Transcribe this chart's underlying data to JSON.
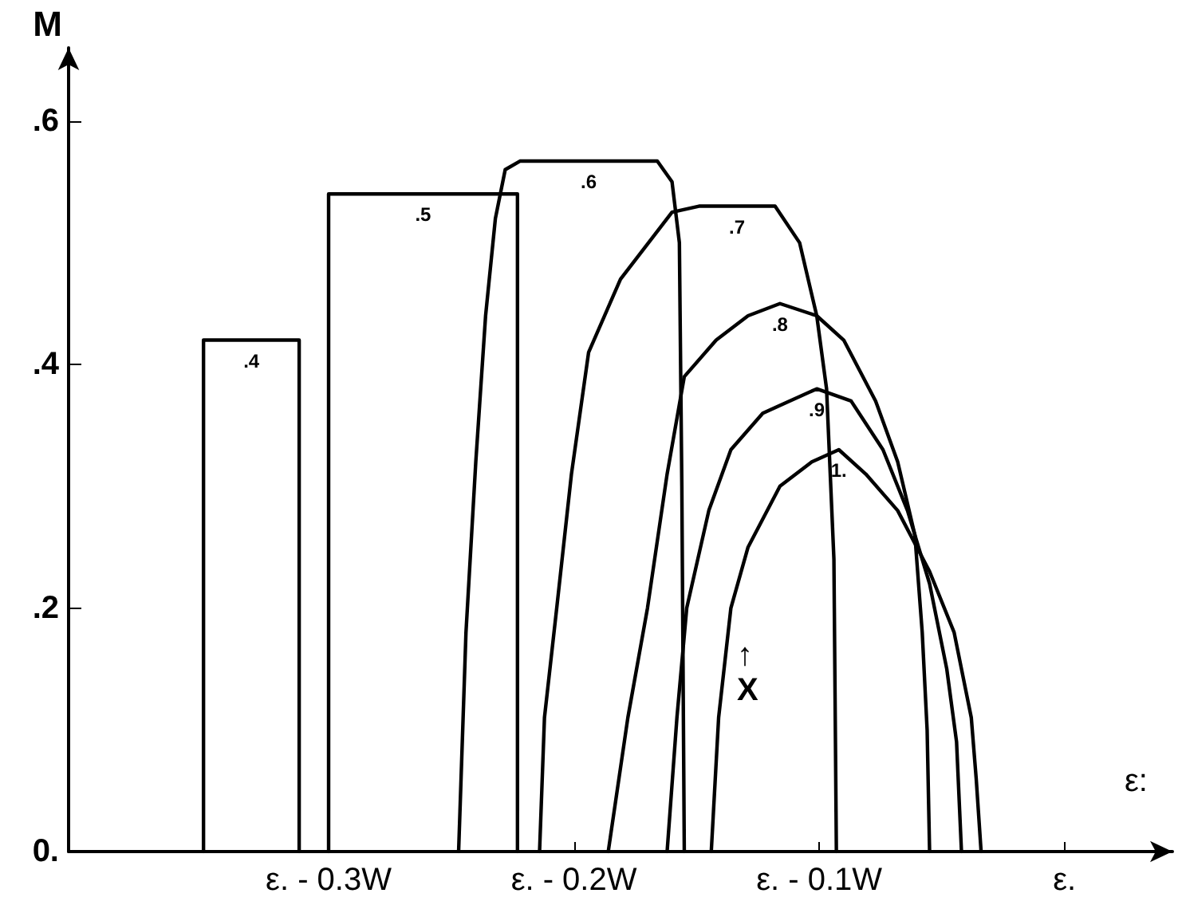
{
  "chart_data": {
    "type": "line",
    "xlabel": "ε:",
    "ylabel": "M",
    "xlim": [
      -0.406,
      0.044
    ],
    "ylim": [
      0,
      0.66
    ],
    "xticks": [
      {
        "value": -0.3,
        "label": "ε. - 0.3W"
      },
      {
        "value": -0.2,
        "label": "ε. - 0.2W"
      },
      {
        "value": -0.1,
        "label": "ε. - 0.1W"
      },
      {
        "value": 0,
        "label": "ε."
      }
    ],
    "yticks": [
      {
        "value": 0,
        "label": "0."
      },
      {
        "value": 0.2,
        "label": ".2"
      },
      {
        "value": 0.4,
        "label": ".4"
      },
      {
        "value": 0.6,
        "label": ".6"
      }
    ],
    "grid": false,
    "marker": "none",
    "line_style": "solid",
    "series": [
      {
        "name": ".4",
        "color": "#000000",
        "x": [
          -0.351,
          -0.351,
          -0.312,
          -0.312
        ],
        "values": [
          0,
          0.42,
          0.42,
          0
        ]
      },
      {
        "name": ".5",
        "color": "#000000",
        "x": [
          -0.3,
          -0.3,
          -0.223,
          -0.223
        ],
        "values": [
          0,
          0.54,
          0.54,
          0
        ]
      },
      {
        "name": ".6",
        "color": "#000000",
        "x": [
          -0.247,
          -0.244,
          -0.24,
          -0.236,
          -0.232,
          -0.228,
          -0.222,
          -0.166,
          -0.16,
          -0.157,
          -0.156,
          -0.155
        ],
        "values": [
          0,
          0.18,
          0.32,
          0.44,
          0.52,
          0.56,
          0.567,
          0.567,
          0.55,
          0.5,
          0.3,
          0
        ]
      },
      {
        "name": ".7",
        "color": "#000000",
        "x": [
          -0.214,
          -0.212,
          -0.207,
          -0.201,
          -0.194,
          -0.181,
          -0.16,
          -0.149,
          -0.118,
          -0.108,
          -0.101,
          -0.097,
          -0.094,
          -0.093
        ],
        "values": [
          0,
          0.11,
          0.2,
          0.31,
          0.41,
          0.47,
          0.525,
          0.53,
          0.53,
          0.5,
          0.44,
          0.38,
          0.24,
          0
        ]
      },
      {
        "name": ".8",
        "color": "#000000",
        "x": [
          -0.186,
          -0.178,
          -0.17,
          -0.162,
          -0.155,
          -0.142,
          -0.129,
          -0.116,
          -0.101,
          -0.09,
          -0.077,
          -0.068,
          -0.061,
          -0.058,
          -0.056,
          -0.055
        ],
        "values": [
          0,
          0.11,
          0.2,
          0.31,
          0.39,
          0.42,
          0.44,
          0.45,
          0.44,
          0.42,
          0.37,
          0.32,
          0.26,
          0.18,
          0.1,
          0
        ]
      },
      {
        "name": ".9",
        "color": "#000000",
        "x": [
          -0.162,
          -0.158,
          -0.154,
          -0.145,
          -0.136,
          -0.123,
          -0.101,
          -0.087,
          -0.074,
          -0.064,
          -0.055,
          -0.048,
          -0.044,
          -0.042
        ],
        "values": [
          0,
          0.11,
          0.2,
          0.28,
          0.33,
          0.36,
          0.38,
          0.37,
          0.33,
          0.28,
          0.22,
          0.15,
          0.09,
          0
        ]
      },
      {
        "name": "1.",
        "color": "#000000",
        "x": [
          -0.144,
          -0.141,
          -0.136,
          -0.129,
          -0.116,
          -0.103,
          -0.092,
          -0.081,
          -0.068,
          -0.055,
          -0.045,
          -0.038,
          -0.036,
          -0.034
        ],
        "values": [
          0,
          0.11,
          0.2,
          0.25,
          0.3,
          0.32,
          0.33,
          0.31,
          0.28,
          0.23,
          0.18,
          0.11,
          0.06,
          0
        ]
      }
    ],
    "annotations": [
      "↑\nX"
    ]
  }
}
